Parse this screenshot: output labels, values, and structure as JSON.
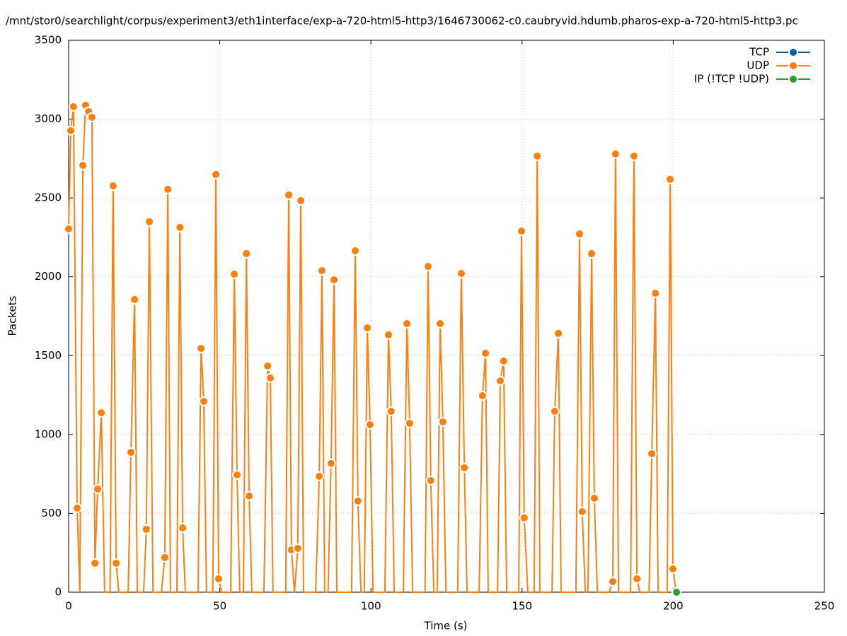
{
  "chart_data": {
    "type": "line",
    "title": "/mnt/stor0/searchlight/corpus/experiment3/eth1interface/exp-a-720-html5-http3/1646730062-c0.caubryvid.hdumb.pharos-exp-a-720-html5-http3.pc",
    "xlabel": "Time (s)",
    "ylabel": "Packets",
    "xlim": [
      0,
      250
    ],
    "xticks": [
      0,
      50,
      100,
      150,
      200,
      250
    ],
    "ylim": [
      0,
      3500
    ],
    "yticks": [
      0,
      500,
      1000,
      1500,
      2000,
      2500,
      3000,
      3500
    ],
    "grid": true,
    "legend": "top right",
    "series": [
      {
        "name": "TCP",
        "color": "#0060ad",
        "x": [],
        "values": []
      },
      {
        "name": "UDP",
        "color": "#ff7f0e",
        "x": [
          0,
          0.7,
          1.6,
          2.8,
          3.7,
          4.7,
          5.6,
          6.6,
          7.7,
          8.7,
          9.6,
          10.8,
          11.9,
          13.7,
          14.7,
          15.7,
          16.6,
          19.7,
          20.6,
          21.8,
          22.7,
          24.8,
          25.7,
          26.7,
          27.9,
          30.7,
          31.8,
          32.8,
          33.7,
          35.8,
          36.8,
          37.7,
          38.6,
          42.8,
          43.8,
          44.7,
          45.6,
          47.7,
          48.7,
          49.6,
          50.6,
          53.6,
          54.8,
          55.7,
          56.6,
          57.8,
          58.8,
          59.7,
          60.6,
          64.6,
          65.8,
          66.7,
          67.6,
          71.8,
          72.8,
          73.7,
          74.7,
          75.8,
          76.8,
          77.7,
          81.7,
          82.9,
          83.8,
          84.7,
          85.8,
          86.8,
          87.8,
          88.7,
          93.6,
          94.8,
          95.7,
          96.7,
          97.8,
          98.8,
          99.7,
          100.7,
          104.6,
          105.8,
          106.7,
          107.7,
          110.7,
          111.9,
          112.8,
          113.8,
          117.9,
          118.9,
          119.8,
          120.8,
          121.9,
          122.9,
          123.8,
          124.8,
          128.7,
          129.9,
          130.9,
          131.8,
          135.8,
          136.9,
          137.9,
          138.8,
          141.9,
          142.8,
          143.9,
          144.9,
          148.9,
          149.8,
          150.7,
          151.9,
          154.0,
          155.0,
          155.9,
          159.9,
          160.8,
          162.0,
          162.9,
          167.8,
          169.0,
          169.9,
          170.9,
          171.8,
          173.0,
          173.9,
          174.9,
          178.8,
          180.0,
          180.9,
          181.9,
          185.9,
          187.0,
          188.0,
          188.9,
          192.0,
          192.9,
          194.1,
          195.0,
          198.0,
          199.0,
          199.9,
          201.0
        ],
        "values": [
          2304,
          2927,
          3079,
          533,
          0,
          2707,
          3088,
          3048,
          3012,
          184,
          654,
          1138,
          0,
          0,
          2577,
          184,
          0,
          0,
          887,
          1856,
          0,
          0,
          399,
          2349,
          0,
          0,
          220,
          2555,
          0,
          0,
          2313,
          408,
          0,
          0,
          1546,
          1210,
          0,
          0,
          2649,
          85,
          0,
          0,
          2017,
          744,
          0,
          0,
          2147,
          610,
          0,
          0,
          1434,
          1358,
          0,
          0,
          2519,
          269,
          0,
          278,
          2483,
          0,
          0,
          735,
          2039,
          0,
          0,
          816,
          1981,
          0,
          0,
          2165,
          578,
          0,
          0,
          1676,
          1062,
          0,
          0,
          1632,
          1147,
          0,
          0,
          1703,
          1071,
          0,
          0,
          2066,
          708,
          0,
          0,
          1703,
          1080,
          0,
          0,
          2021,
          789,
          0,
          0,
          1246,
          1515,
          0,
          0,
          1340,
          1466,
          0,
          0,
          2290,
          471,
          0,
          0,
          2766,
          0,
          0,
          1147,
          1641,
          0,
          0,
          2272,
          511,
          0,
          0,
          2147,
          596,
          0,
          0,
          67,
          2779,
          0,
          0,
          2766,
          85,
          0,
          0,
          878,
          1896,
          0,
          0,
          2618,
          148,
          0
        ]
      },
      {
        "name": "IP (!TCP  !UDP)",
        "color": "#2ca02c",
        "x": [
          201.1
        ],
        "values": [
          0
        ]
      }
    ]
  }
}
